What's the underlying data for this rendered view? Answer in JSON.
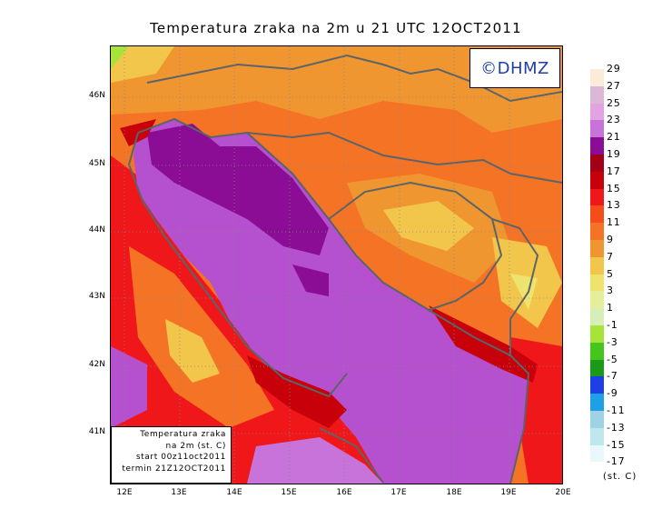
{
  "title": "Temperatura zraka na 2m u 21 UTC 12OCT2011",
  "logo": "©DHMZ",
  "info": {
    "line1": "Temperatura zraka",
    "line2": "na 2m (st. C)",
    "line3": "start 00z11oct2011",
    "line4": "termin 21Z12OCT2011"
  },
  "map": {
    "region": "Adriatic Sea and surroundings",
    "lat_labels": [
      "46N",
      "45N",
      "44N",
      "43N",
      "42N",
      "41N"
    ],
    "lon_labels": [
      "12E",
      "13E",
      "14E",
      "15E",
      "16E",
      "17E",
      "18E",
      "19E",
      "20E"
    ],
    "lat_range": [
      40.25,
      46.75
    ],
    "lon_range": [
      11.75,
      20.0
    ]
  },
  "legend": {
    "unit": "(st. C)",
    "labels": [
      "29",
      "27",
      "25",
      "23",
      "21",
      "19",
      "17",
      "15",
      "13",
      "11",
      "9",
      "7",
      "5",
      "3",
      "1",
      "-1",
      "-3",
      "-5",
      "-7",
      "-9",
      "-11",
      "-13",
      "-15",
      "-17"
    ],
    "colors": [
      "#fbebd8",
      "#dcb8d8",
      "#e1a3e2",
      "#c873d9",
      "#8b0d96",
      "#a30018",
      "#c8000a",
      "#f0171b",
      "#f54c1a",
      "#f57324",
      "#f09630",
      "#f2c64a",
      "#ede36e",
      "#e5ef99",
      "#d8eeb8",
      "#a6e43c",
      "#46c61c",
      "#1a9a1a",
      "#1f3fe6",
      "#1ea0e6",
      "#9fd2e4",
      "#c0e6ee",
      "#e8f8fb"
    ]
  }
}
